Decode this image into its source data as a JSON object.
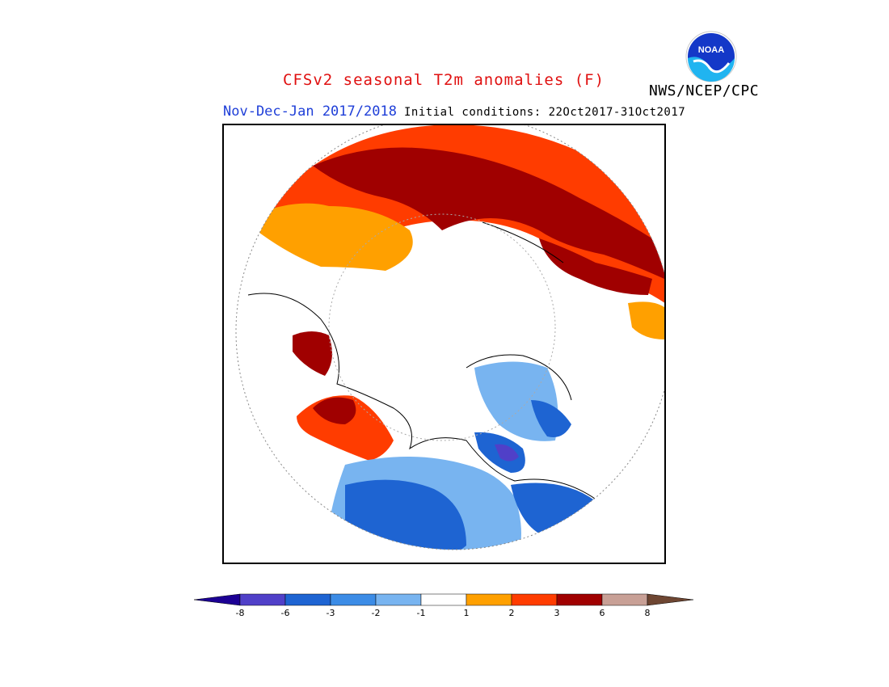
{
  "title": "CFSv2 seasonal T2m anomalies (F)",
  "org": "NWS/NCEP/CPC",
  "season": "Nov-Dec-Jan 2017/2018",
  "initial_conditions": "Initial conditions: 22Oct2017-31Oct2017",
  "logo_text": "NOAA",
  "legend": {
    "unit": "F",
    "bins": [
      {
        "range": "< -8",
        "color": "#1c0094"
      },
      {
        "range": "-8 to -6",
        "color": "#5040c8"
      },
      {
        "range": "-6 to -3",
        "color": "#1e64d2"
      },
      {
        "range": "-3 to -2",
        "color": "#3c8ce6"
      },
      {
        "range": "-2 to -1",
        "color": "#78b4f0"
      },
      {
        "range": "-1 to 1",
        "color": "#ffffff"
      },
      {
        "range": "1 to 2",
        "color": "#ffa000"
      },
      {
        "range": "2 to 3",
        "color": "#ff3c00"
      },
      {
        "range": "3 to 6",
        "color": "#a00000"
      },
      {
        "range": "6 to 8",
        "color": "#c8a096"
      },
      {
        "range": "> 8",
        "color": "#6e4632"
      }
    ],
    "ticks": [
      "-8",
      "-6",
      "-3",
      "-2",
      "-1",
      "1",
      "2",
      "3",
      "6",
      "8"
    ]
  },
  "icons": [
    "noaa-logo-icon"
  ]
}
